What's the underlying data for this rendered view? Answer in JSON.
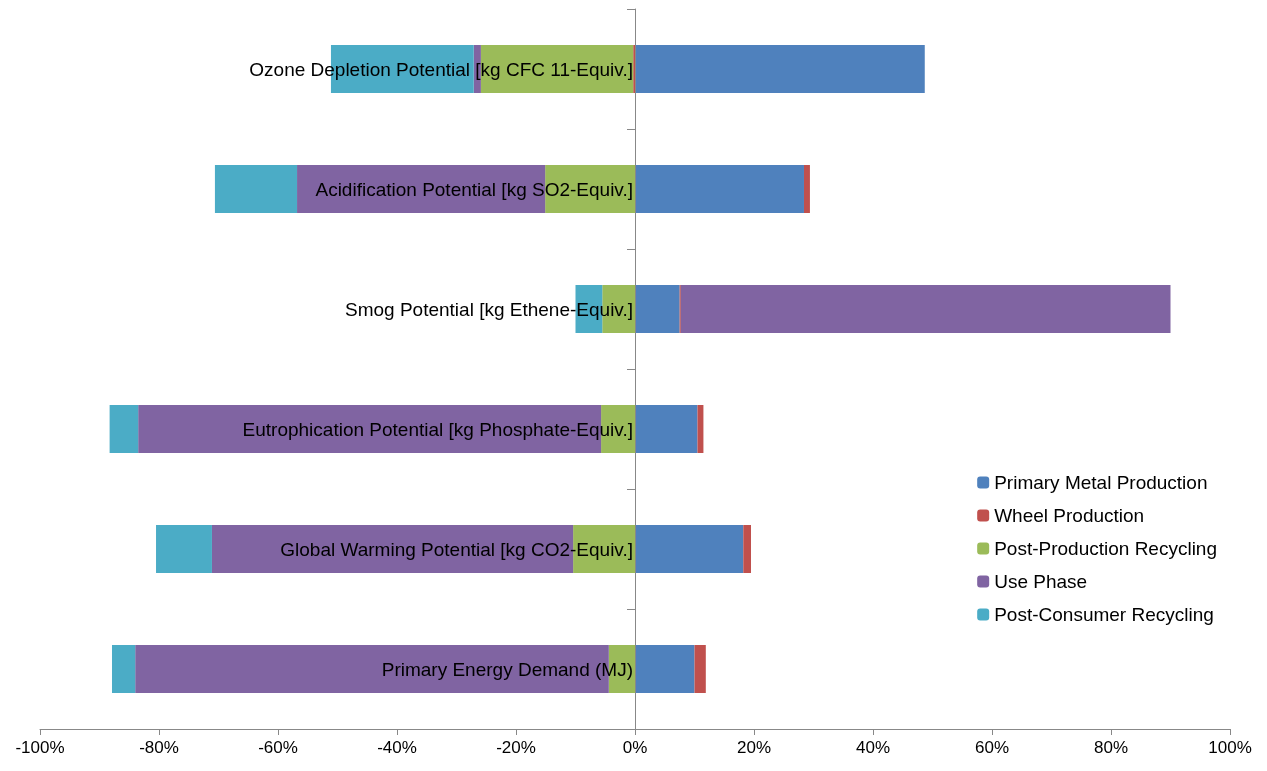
{
  "chart_data": {
    "type": "bar",
    "orientation": "horizontal",
    "stacked": true,
    "categories": [
      "Ozone Depletion Potential [kg CFC 11-Equiv.]",
      "Acidification Potential [kg SO2-Equiv.]",
      "Smog Potential [kg Ethene-Equiv.]",
      "Eutrophication Potential [kg Phosphate-Equiv.]",
      "Global Warming Potential [kg CO2-Equiv.]",
      "Primary Energy Demand (MJ)"
    ],
    "series": [
      {
        "name": "Primary Metal Production",
        "color": "#4f81bd",
        "values": [
          48.7,
          28.4,
          7.5,
          10.5,
          18.2,
          10.0
        ]
      },
      {
        "name": "Wheel Production",
        "color": "#c0504d",
        "values": [
          -0.3,
          1.0,
          0.2,
          1.0,
          1.3,
          1.9
        ]
      },
      {
        "name": "Post-Production Recycling",
        "color": "#9bbb59",
        "values": [
          -25.6,
          -15.1,
          -5.5,
          -5.7,
          -10.4,
          -4.4
        ]
      },
      {
        "name": "Use Phase",
        "color": "#8064a2",
        "values": [
          -1.2,
          -41.7,
          82.3,
          -77.8,
          -60.7,
          -79.6
        ]
      },
      {
        "name": "Post-Consumer Recycling",
        "color": "#4bacc6",
        "values": [
          -24.0,
          -13.8,
          -4.5,
          -4.8,
          -9.4,
          -3.9
        ]
      }
    ],
    "xlim": [
      -100,
      100
    ],
    "xticks": [
      {
        "value": -100,
        "label": "-100%"
      },
      {
        "value": -80,
        "label": "-80%"
      },
      {
        "value": -60,
        "label": "-60%"
      },
      {
        "value": -40,
        "label": "-40%"
      },
      {
        "value": -20,
        "label": "-20%"
      },
      {
        "value": 0,
        "label": "0%"
      },
      {
        "value": 20,
        "label": "20%"
      },
      {
        "value": 40,
        "label": "40%"
      },
      {
        "value": 60,
        "label": "60%"
      },
      {
        "value": 80,
        "label": "80%"
      },
      {
        "value": 100,
        "label": "100%"
      }
    ],
    "grid": false,
    "legend": "right"
  }
}
